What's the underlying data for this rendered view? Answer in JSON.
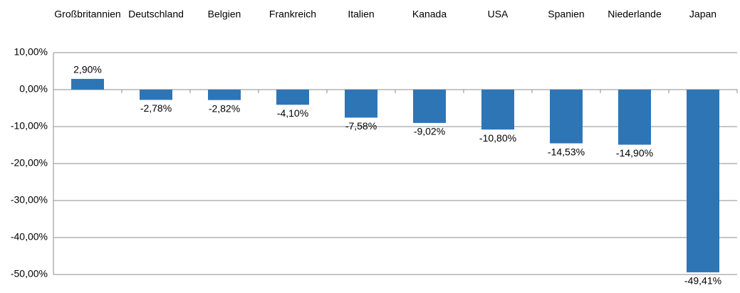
{
  "chart_data": {
    "type": "bar",
    "categories": [
      "Großbritannien",
      "Deutschland",
      "Belgien",
      "Frankreich",
      "Italien",
      "Kanada",
      "USA",
      "Spanien",
      "Niederlande",
      "Japan"
    ],
    "values": [
      2.9,
      -2.78,
      -2.82,
      -4.1,
      -7.58,
      -9.02,
      -10.8,
      -14.53,
      -14.9,
      -49.41
    ],
    "value_labels": [
      "2,90%",
      "-2,78%",
      "-2,82%",
      "-4,10%",
      "-7,58%",
      "-9,02%",
      "-10,80%",
      "-14,53%",
      "-14,90%",
      "-49,41%"
    ],
    "color": "#2e75b6",
    "ylim": [
      -50,
      10
    ],
    "yticks": [
      {
        "value": -50,
        "label": "-50,00%"
      },
      {
        "value": -40,
        "label": "-40,00%"
      },
      {
        "value": -30,
        "label": "-30,00%"
      },
      {
        "value": -20,
        "label": "-20,00%"
      },
      {
        "value": -10,
        "label": "-10,00%"
      },
      {
        "value": 0,
        "label": "0,00%"
      },
      {
        "value": 10,
        "label": "10,00%"
      }
    ],
    "grid": true
  }
}
